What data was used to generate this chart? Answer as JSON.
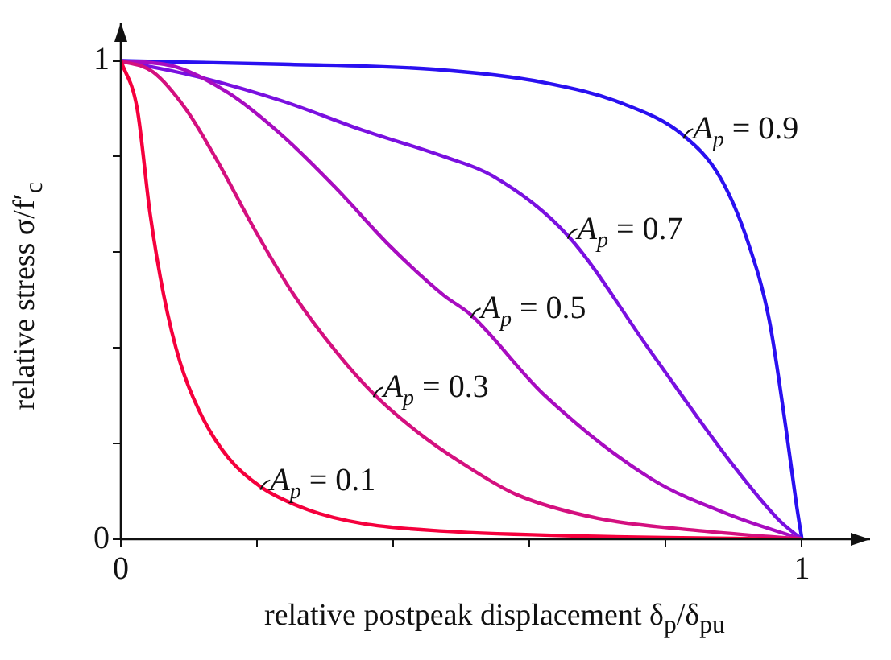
{
  "chart_data": {
    "type": "line",
    "xlabel": "relative postpeak displacement δ$_{p}$/δ$_{pu}$",
    "ylabel": "relative stress σ/f′$_{c}$",
    "xlim": [
      0,
      1.1
    ],
    "ylim": [
      0,
      1.08
    ],
    "xticks": [
      0,
      {
        "value": 0.2,
        "label": null
      },
      {
        "value": 0.4,
        "label": null
      },
      {
        "value": 0.6,
        "label": null
      },
      {
        "value": 0.8,
        "label": null
      },
      1
    ],
    "yticks": [
      0,
      {
        "value": 0.2,
        "label": null
      },
      {
        "value": 0.4,
        "label": null
      },
      {
        "value": 0.6,
        "label": null
      },
      {
        "value": 0.8,
        "label": null
      },
      1
    ],
    "grid": false,
    "legend": false,
    "marker": "none",
    "line_style": "solid",
    "series": [
      {
        "color": "#f5003d",
        "x": [
          0,
          0.024,
          0.043,
          0.063,
          0.087,
          0.118,
          0.158,
          0.205,
          0.276,
          0.355,
          0.474,
          0.7,
          1
        ],
        "values": [
          1,
          0.9,
          0.68,
          0.51,
          0.37,
          0.26,
          0.17,
          0.11,
          0.061,
          0.033,
          0.017,
          0.006,
          0
        ]
      },
      {
        "color": "#d4107f",
        "x": [
          0,
          0.047,
          0.095,
          0.142,
          0.197,
          0.253,
          0.316,
          0.371,
          0.434,
          0.5,
          0.58,
          0.7,
          0.857,
          1
        ],
        "values": [
          1,
          0.977,
          0.9,
          0.79,
          0.646,
          0.513,
          0.392,
          0.304,
          0.226,
          0.16,
          0.094,
          0.044,
          0.017,
          0
        ]
      },
      {
        "color": "#a80cc0",
        "x": [
          0,
          0.079,
          0.158,
          0.237,
          0.316,
          0.395,
          0.474,
          0.514,
          0.62,
          0.778,
          0.896,
          1
        ],
        "values": [
          1,
          0.988,
          0.933,
          0.844,
          0.734,
          0.613,
          0.51,
          0.469,
          0.304,
          0.127,
          0.05,
          0
        ]
      },
      {
        "color": "#7a10e0",
        "x": [
          0,
          0.118,
          0.237,
          0.355,
          0.474,
          0.545,
          0.656,
          0.778,
          0.896,
          0.967,
          1
        ],
        "values": [
          1,
          0.965,
          0.916,
          0.855,
          0.8,
          0.76,
          0.635,
          0.392,
          0.16,
          0.039,
          0
        ]
      },
      {
        "color": "#2a10f0",
        "x": [
          0,
          0.237,
          0.462,
          0.62,
          0.738,
          0.826,
          0.88,
          0.92,
          0.952,
          0.976,
          0.992,
          1
        ],
        "values": [
          1,
          0.993,
          0.982,
          0.955,
          0.91,
          0.844,
          0.756,
          0.624,
          0.458,
          0.237,
          0.072,
          0
        ]
      }
    ],
    "annotations": [
      {
        "text": "A$_{p}$ = 0.1",
        "x": 0.205,
        "y": 0.11
      },
      {
        "text": "A$_{p}$ = 0.3",
        "x": 0.371,
        "y": 0.304
      },
      {
        "text": "A$_{p}$ = 0.5",
        "x": 0.514,
        "y": 0.469
      },
      {
        "text": "A$_{p}$ = 0.7",
        "x": 0.656,
        "y": 0.635
      },
      {
        "text": "A$_{p}$ = 0.9",
        "x": 0.826,
        "y": 0.844
      }
    ]
  }
}
